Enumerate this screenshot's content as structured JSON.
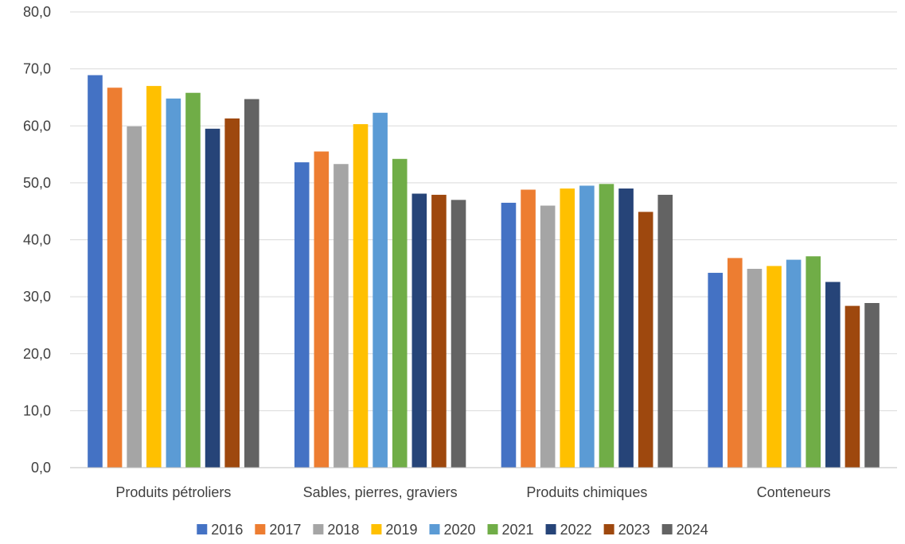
{
  "chart_data": {
    "type": "bar",
    "categories": [
      "Produits pétroliers",
      "Sables, pierres, graviers",
      "Produits chimiques",
      "Conteneurs"
    ],
    "series": [
      {
        "name": "2016",
        "color": "#4472C4",
        "values": [
          68.9,
          53.6,
          46.5,
          34.2
        ]
      },
      {
        "name": "2017",
        "color": "#ED7D31",
        "values": [
          66.7,
          55.5,
          48.8,
          36.8
        ]
      },
      {
        "name": "2018",
        "color": "#A5A5A5",
        "values": [
          59.9,
          53.3,
          46.0,
          34.9
        ]
      },
      {
        "name": "2019",
        "color": "#FFC000",
        "values": [
          67.0,
          60.3,
          49.0,
          35.4
        ]
      },
      {
        "name": "2020",
        "color": "#5B9BD5",
        "values": [
          64.8,
          62.3,
          49.5,
          36.5
        ]
      },
      {
        "name": "2021",
        "color": "#70AD47",
        "values": [
          65.8,
          54.2,
          49.8,
          37.1
        ]
      },
      {
        "name": "2022",
        "color": "#264478",
        "values": [
          59.5,
          48.1,
          49.0,
          32.6
        ]
      },
      {
        "name": "2023",
        "color": "#9E480E",
        "values": [
          61.3,
          47.9,
          44.9,
          28.4
        ]
      },
      {
        "name": "2024",
        "color": "#636363",
        "values": [
          64.7,
          47.0,
          47.9,
          28.9
        ]
      }
    ],
    "ylim": [
      0,
      80
    ],
    "yticks": [
      "0,0",
      "10,0",
      "20,0",
      "30,0",
      "40,0",
      "50,0",
      "60,0",
      "70,0",
      "80,0"
    ],
    "grid": true,
    "legend_position": "bottom",
    "title": "",
    "xlabel": "",
    "ylabel": ""
  }
}
